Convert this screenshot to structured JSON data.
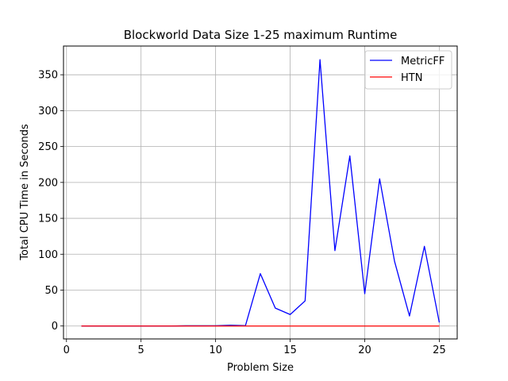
{
  "chart_data": {
    "type": "line",
    "title": "Blockworld Data Size 1-25 maximum Runtime",
    "xlabel": "Problem Size",
    "ylabel": "Total CPU Time in Seconds",
    "xlim": [
      -0.2,
      26.2
    ],
    "ylim": [
      -18,
      390
    ],
    "xticks": [
      0,
      5,
      10,
      15,
      20,
      25
    ],
    "yticks": [
      0,
      50,
      100,
      150,
      200,
      250,
      300,
      350
    ],
    "grid": true,
    "legend_position": "top-right",
    "series": [
      {
        "name": "MetricFF",
        "color": "#0000ff",
        "x": [
          1,
          2,
          3,
          4,
          5,
          6,
          7,
          8,
          9,
          10,
          11,
          12,
          13,
          14,
          15,
          16,
          17,
          18,
          19,
          20,
          21,
          22,
          23,
          24,
          25
        ],
        "y": [
          0,
          0,
          0,
          0,
          0,
          0,
          0,
          0.3,
          0.3,
          0.4,
          1,
          0.5,
          73,
          25,
          16,
          35,
          371,
          105,
          237,
          45,
          205,
          90,
          14,
          111,
          5
        ]
      },
      {
        "name": "HTN",
        "color": "#ff0000",
        "x": [
          1,
          2,
          3,
          4,
          5,
          6,
          7,
          8,
          9,
          10,
          11,
          12,
          13,
          14,
          15,
          16,
          17,
          18,
          19,
          20,
          21,
          22,
          23,
          24,
          25
        ],
        "y": [
          0,
          0,
          0,
          0,
          0,
          0,
          0,
          0,
          0,
          0,
          0,
          0,
          0,
          0,
          0,
          0,
          0,
          0,
          0,
          0,
          0,
          0,
          0,
          0,
          0
        ]
      }
    ]
  }
}
